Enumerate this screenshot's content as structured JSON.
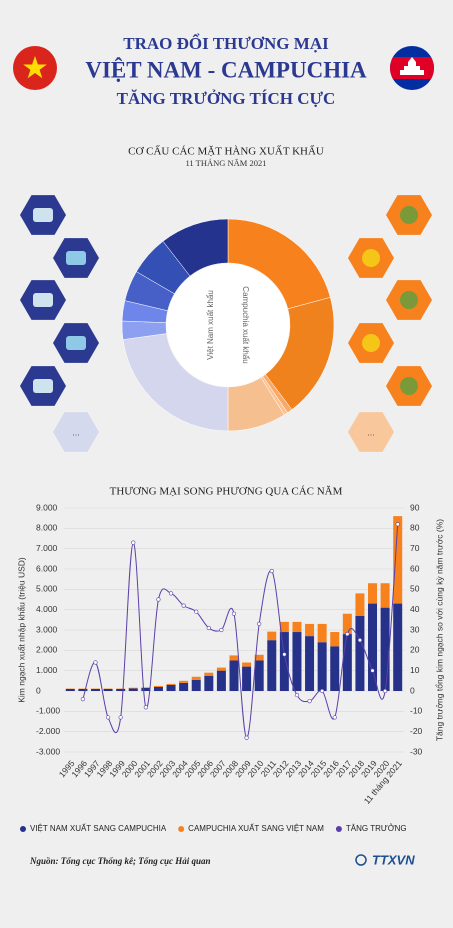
{
  "header": {
    "line1": "TRAO ĐỔI THƯƠNG MẠI",
    "line2": "VIỆT NAM - CAMPUCHIA",
    "line3": "TĂNG TRƯỞNG TÍCH CỰC"
  },
  "chart_data": [
    {
      "type": "pie",
      "title": "CƠ CẤU CÁC MẶT HÀNG XUẤT KHẨU",
      "subtitle": "11 THÁNG NĂM 2021",
      "annotations": [
        "Campuchia xuất khẩu",
        "Việt Nam xuất khẩu"
      ],
      "categories": [
        null,
        null,
        null,
        null,
        null,
        null,
        null,
        null,
        null,
        null,
        null
      ],
      "values": [
        20.8,
        18.9,
        0.8,
        0.6,
        8.9,
        22.8,
        2.8,
        3.1,
        4.7,
        6.1,
        10.5
      ],
      "colors": [
        "#f7811c",
        "#f0821e",
        "#f9a868",
        "#fbc394",
        "#f6bf8f",
        "#d3d6ec",
        "#8c9ff0",
        "#6e86ea",
        "#4660c8",
        "#3450b5",
        "#23338e"
      ],
      "icon_labels": [
        "...",
        "..."
      ]
    },
    {
      "type": "bar",
      "title": "THƯƠNG MẠI SONG PHƯƠNG QUA CÁC NĂM",
      "ylabel": "Kim ngạch xuất nhập khẩu (triệu USD)",
      "y2label": "Tăng trưởng tổng kim ngạch so với cùng kỳ năm trước (%)",
      "categories": [
        "1995",
        "1996",
        "1997",
        "1998",
        "1999",
        "2000",
        "2001",
        "2002",
        "2003",
        "2004",
        "2005",
        "2006",
        "2007",
        "2008",
        "2009",
        "2010",
        "2011",
        "2012",
        "2013",
        "2014",
        "2015",
        "2016",
        "2017",
        "2018",
        "2019",
        "2020",
        "11 tháng 2021"
      ],
      "stacked": true,
      "series": [
        {
          "name": "VIỆT NAM XUẤT SANG CAMPUCHIA",
          "color": "#26328a",
          "values": [
            100,
            100,
            100,
            100,
            100,
            130,
            150,
            200,
            300,
            400,
            550,
            750,
            1000,
            1500,
            1200,
            1500,
            2500,
            2900,
            2900,
            2700,
            2400,
            2200,
            2800,
            3700,
            4300,
            4100,
            4300
          ]
        },
        {
          "name": "CAMPUCHIA XUẤT SANG VIỆT NAM",
          "color": "#f7811c",
          "values": [
            20,
            20,
            20,
            20,
            20,
            30,
            30,
            50,
            50,
            100,
            150,
            150,
            150,
            250,
            200,
            280,
            420,
            500,
            500,
            600,
            900,
            700,
            1000,
            1100,
            1000,
            1200,
            4300
          ]
        },
        {
          "name": "TĂNG TRƯỞNG",
          "color": "#5b3fa8",
          "axis": "y2",
          "kind": "line",
          "values": [
            null,
            -4,
            14,
            -13,
            -13,
            73,
            -8,
            45,
            48,
            42,
            39,
            31,
            30,
            38,
            -23,
            33,
            59,
            18,
            -2,
            -5,
            0,
            -13,
            28,
            25,
            10,
            0,
            82
          ]
        }
      ],
      "ylim": [
        -3000,
        9000
      ],
      "yticks": [
        {
          "value": -3000,
          "label": "-3.000"
        },
        {
          "value": -2000,
          "label": "-2.000"
        },
        {
          "value": -1000,
          "label": "-1.000"
        },
        0,
        {
          "value": 1000,
          "label": "1.000"
        },
        {
          "value": 2000,
          "label": "2.000"
        },
        {
          "value": 3000,
          "label": "3.000"
        },
        {
          "value": 4000,
          "label": "4.000"
        },
        {
          "value": 5000,
          "label": "5.000"
        },
        {
          "value": 6000,
          "label": "6.000"
        },
        {
          "value": 7000,
          "label": "7.000"
        },
        {
          "value": 8000,
          "label": "8.000"
        },
        {
          "value": 9000,
          "label": "9.000"
        }
      ],
      "y2lim": [
        -30,
        90
      ],
      "y2ticks": [
        -30,
        -20,
        -10,
        0,
        10,
        20,
        30,
        40,
        50,
        60,
        70,
        80,
        90
      ],
      "grid": true
    }
  ],
  "source": "Nguồn: Tổng cục Thống kê; Tổng cục Hải quan",
  "logo": "TTXVN"
}
